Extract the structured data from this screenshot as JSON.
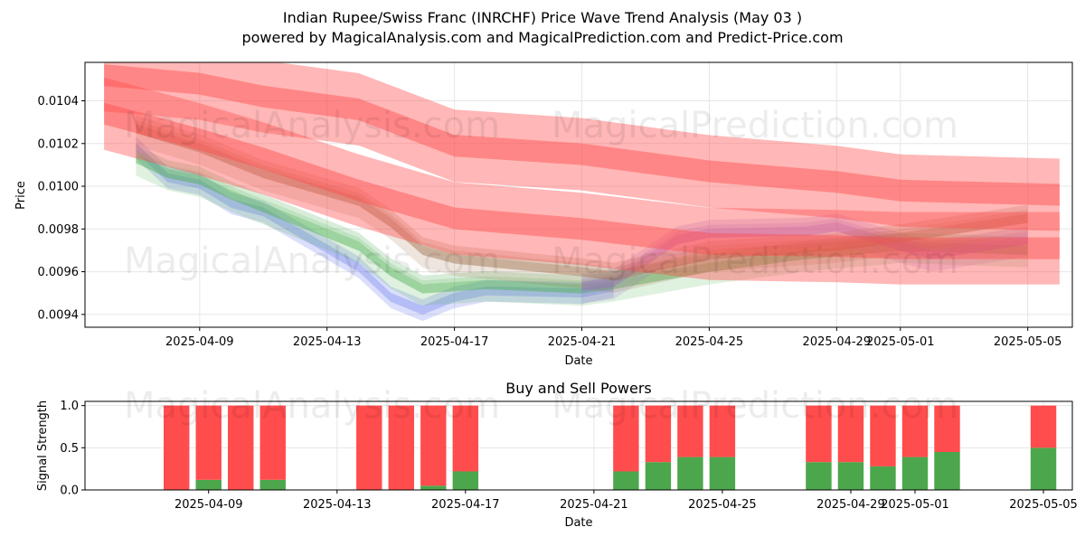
{
  "chart_data": [
    {
      "type": "line",
      "title_line1": "Indian Rupee/Swiss Franc (INRCHF) Price Wave Trend Analysis (May 03 )",
      "title_line2": "powered by MagicalAnalysis.com and MagicalPrediction.com and Predict-Price.com",
      "xlabel": "Date",
      "ylabel": "Price",
      "xlim": [
        "2025-04-05.4",
        "2025-05-06.4"
      ],
      "ylim": [
        0.00934,
        0.01058
      ],
      "grid": true,
      "x_ticks": [
        "2025-04-09",
        "2025-04-13",
        "2025-04-17",
        "2025-04-21",
        "2025-04-25",
        "2025-04-29",
        "2025-05-01",
        "2025-05-05"
      ],
      "y_ticks": [
        "0.0094",
        "0.0096",
        "0.0098",
        "0.0100",
        "0.0102",
        "0.0104"
      ],
      "y_tick_values": [
        0.0094,
        0.0096,
        0.0098,
        0.01,
        0.0102,
        0.0104
      ],
      "watermarks": [
        "MagicalAnalysis.com",
        "MagicalPrediction.com",
        "MagicalAnalysis.com",
        "MagicalPrediction.com"
      ],
      "series": [
        {
          "name": "actual-blue",
          "color": "#6f7ff0",
          "x": [
            "2025-04-07",
            "2025-04-08",
            "2025-04-09",
            "2025-04-10",
            "2025-04-11",
            "2025-04-14",
            "2025-04-15",
            "2025-04-16",
            "2025-04-17",
            "2025-04-18",
            "2025-04-21",
            "2025-04-22"
          ],
          "values": [
            0.01018,
            0.01004,
            0.01001,
            0.00992,
            0.00988,
            0.00962,
            0.00948,
            0.00942,
            0.00948,
            0.00951,
            0.0095,
            0.00953
          ]
        },
        {
          "name": "wave-green",
          "color": "#4caf50",
          "x": [
            "2025-04-07",
            "2025-04-08",
            "2025-04-09",
            "2025-04-10",
            "2025-04-11",
            "2025-04-14",
            "2025-04-15",
            "2025-04-16",
            "2025-04-17",
            "2025-04-18",
            "2025-04-21",
            "2025-04-22",
            "2025-04-25",
            "2025-04-28",
            "2025-05-01",
            "2025-05-05"
          ],
          "values": [
            0.01013,
            0.01006,
            0.01003,
            0.00996,
            0.0099,
            0.00972,
            0.0096,
            0.00952,
            0.00953,
            0.00954,
            0.00952,
            0.00954,
            0.00962,
            0.00968,
            0.00972,
            0.0097
          ]
        },
        {
          "name": "wave-purple",
          "color": "#9c6fd6",
          "x": [
            "2025-04-21",
            "2025-04-22",
            "2025-04-23",
            "2025-04-24",
            "2025-04-25",
            "2025-04-28",
            "2025-04-29",
            "2025-05-01",
            "2025-05-02",
            "2025-05-05"
          ],
          "values": [
            0.00953,
            0.00955,
            0.00965,
            0.00975,
            0.00978,
            0.00979,
            0.00981,
            0.00972,
            0.00968,
            0.00975
          ]
        },
        {
          "name": "wave-brown",
          "color": "#a0704a",
          "x": [
            "2025-04-07",
            "2025-04-09",
            "2025-04-11",
            "2025-04-14",
            "2025-04-15",
            "2025-04-16",
            "2025-04-17",
            "2025-04-21",
            "2025-04-22",
            "2025-04-25",
            "2025-04-29",
            "2025-05-01",
            "2025-05-05"
          ],
          "values": [
            0.01027,
            0.01018,
            0.01006,
            0.00993,
            0.00983,
            0.0097,
            0.00966,
            0.0096,
            0.00958,
            0.00968,
            0.00972,
            0.00976,
            0.00985
          ]
        },
        {
          "name": "wave-red-upper",
          "color": "#ff4c4c",
          "x": [
            "2025-04-06",
            "2025-04-09",
            "2025-04-11",
            "2025-04-14",
            "2025-04-17",
            "2025-04-21",
            "2025-04-25",
            "2025-04-29",
            "2025-05-01",
            "2025-05-06"
          ],
          "values": [
            0.01052,
            0.01048,
            0.01042,
            0.01036,
            0.01019,
            0.01015,
            0.01007,
            0.01002,
            0.00998,
            0.00996
          ]
        },
        {
          "name": "wave-red-lower",
          "color": "#ff4c4c",
          "x": [
            "2025-04-06",
            "2025-04-09",
            "2025-04-11",
            "2025-04-14",
            "2025-04-17",
            "2025-04-21",
            "2025-04-25",
            "2025-04-29",
            "2025-05-01",
            "2025-05-06"
          ],
          "values": [
            0.01034,
            0.01022,
            0.01013,
            0.00998,
            0.00985,
            0.0098,
            0.00973,
            0.00972,
            0.00971,
            0.00971
          ]
        }
      ]
    },
    {
      "type": "bar",
      "title": "Buy and Sell Powers",
      "xlabel": "Date",
      "ylabel": "Signal Strength",
      "ylim": [
        0,
        1.05
      ],
      "grid": true,
      "x_ticks": [
        "2025-04-09",
        "2025-04-13",
        "2025-04-17",
        "2025-04-21",
        "2025-04-25",
        "2025-04-29",
        "2025-05-01",
        "2025-05-05"
      ],
      "y_ticks": [
        "0.0",
        "0.5",
        "1.0"
      ],
      "y_tick_values": [
        0.0,
        0.5,
        1.0
      ],
      "watermarks": [
        "MagicalAnalysis.com",
        "MagicalPrediction.com"
      ],
      "categories": [
        "2025-04-08",
        "2025-04-09",
        "2025-04-10",
        "2025-04-11",
        "2025-04-14",
        "2025-04-15",
        "2025-04-16",
        "2025-04-17",
        "2025-04-22",
        "2025-04-23",
        "2025-04-24",
        "2025-04-25",
        "2025-04-28",
        "2025-04-29",
        "2025-04-30",
        "2025-05-01",
        "2025-05-02",
        "2025-05-05"
      ],
      "series": [
        {
          "name": "Buy",
          "color": "#4ca64c",
          "values": [
            0.0,
            0.12,
            0.0,
            0.12,
            0.0,
            0.0,
            0.05,
            0.22,
            0.22,
            0.33,
            0.39,
            0.39,
            0.33,
            0.33,
            0.28,
            0.39,
            0.45,
            0.5
          ]
        },
        {
          "name": "Sell",
          "color": "#ff4c4c",
          "values": [
            1.0,
            0.88,
            1.0,
            0.88,
            1.0,
            1.0,
            0.95,
            0.78,
            0.78,
            0.67,
            0.61,
            0.61,
            0.67,
            0.67,
            0.72,
            0.61,
            0.55,
            0.5
          ]
        }
      ]
    }
  ]
}
